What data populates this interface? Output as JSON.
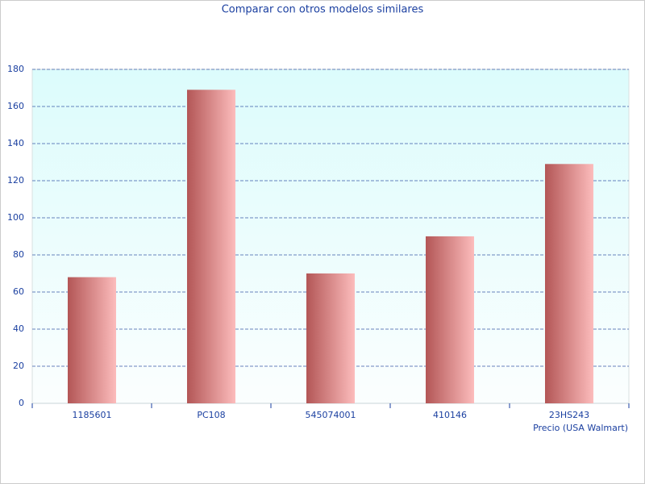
{
  "chart_data": {
    "type": "bar",
    "title": "Comparar con otros modelos similares",
    "x_label": "Precio (USA Walmart)",
    "categories": [
      "1185601",
      "PC108",
      "545074001",
      "410146",
      "23HS243"
    ],
    "values": [
      68,
      169,
      70,
      90,
      129
    ],
    "colors": [
      "#b35656",
      "#fcbcbc"
    ],
    "ylim": [
      0,
      180
    ],
    "yticks": [
      0,
      20,
      40,
      60,
      80,
      100,
      120,
      140,
      160,
      180
    ],
    "grid": true
  }
}
